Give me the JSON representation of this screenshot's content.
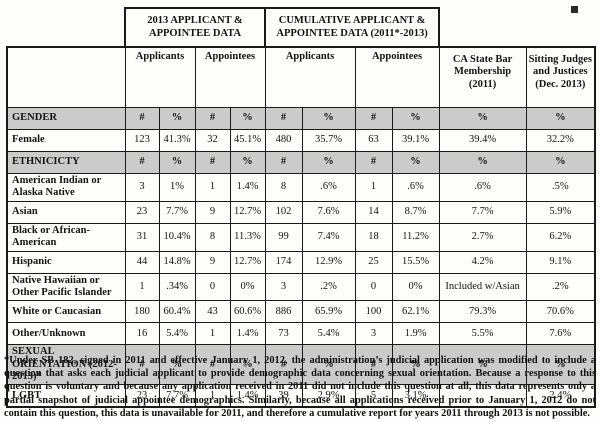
{
  "colors": {
    "section_row_bg": "#cbcbcb",
    "border": "#1a1a1a",
    "page_bg": "#fdfdfc"
  },
  "table": {
    "header": {
      "group_2013": "2013 APPLICANT & APPOINTEE DATA",
      "group_cumulative": "CUMULATIVE APPLICANT & APPOINTEE DATA (2011*-2013)",
      "sub_applicants_2013": "Applicants",
      "sub_appointees_2013": "Appointees",
      "sub_applicants_cum": "Applicants",
      "sub_appointees_cum": "Appointees",
      "col_ca_state_bar": "CA State Bar Membership (2011)",
      "col_sitting_judges": "Sitting Judges and Justices (Dec. 2013)"
    },
    "rows": [
      {
        "type": "section",
        "label": "GENDER",
        "cells": [
          "#",
          "%",
          "#",
          "%",
          "#",
          "%",
          "#",
          "%",
          "%",
          "%"
        ]
      },
      {
        "type": "data",
        "label": "Female",
        "cells": [
          "123",
          "41.3%",
          "32",
          "45.1%",
          "480",
          "35.7%",
          "63",
          "39.1%",
          "39.4%",
          "32.2%"
        ]
      },
      {
        "type": "section",
        "label": "ETHNICICTY",
        "cells": [
          "#",
          "%",
          "#",
          "%",
          "#",
          "%",
          "#",
          "%",
          "%",
          "%"
        ]
      },
      {
        "type": "data",
        "label": "American Indian or Alaska Native",
        "cells": [
          "3",
          "1%",
          "1",
          "1.4%",
          "8",
          ".6%",
          "1",
          ".6%",
          ".6%",
          ".5%"
        ]
      },
      {
        "type": "data",
        "label": "Asian",
        "cells": [
          "23",
          "7.7%",
          "9",
          "12.7%",
          "102",
          "7.6%",
          "14",
          "8.7%",
          "7.7%",
          "5.9%"
        ]
      },
      {
        "type": "data",
        "label": "Black or African-American",
        "cells": [
          "31",
          "10.4%",
          "8",
          "11.3%",
          "99",
          "7.4%",
          "18",
          "11.2%",
          "2.7%",
          "6.2%"
        ]
      },
      {
        "type": "data",
        "label": "Hispanic",
        "cells": [
          "44",
          "14.8%",
          "9",
          "12.7%",
          "174",
          "12.9%",
          "25",
          "15.5%",
          "4.2%",
          "9.1%"
        ]
      },
      {
        "type": "data",
        "label": "Native Hawaiian or Other Pacific Islander",
        "cells": [
          "1",
          ".34%",
          "0",
          "0%",
          "3",
          ".2%",
          "0",
          "0%",
          "Included w/Asian",
          ".2%"
        ]
      },
      {
        "type": "data",
        "label": "White or Caucasian",
        "cells": [
          "180",
          "60.4%",
          "43",
          "60.6%",
          "886",
          "65.9%",
          "100",
          "62.1%",
          "79.3%",
          "70.6%"
        ]
      },
      {
        "type": "data",
        "label": "Other/Unknown",
        "cells": [
          "16",
          "5.4%",
          "1",
          "1.4%",
          "73",
          "5.4%",
          "3",
          "1.9%",
          "5.5%",
          "7.6%"
        ]
      },
      {
        "type": "section",
        "label": "SEXUAL ORIENTATION (2012-2013)*",
        "cells": [
          "#",
          "%",
          "#",
          "%",
          "#",
          "%",
          "#",
          "%",
          "%",
          "%"
        ]
      },
      {
        "type": "data",
        "label": "LGBT",
        "cells": [
          "23",
          "7.7%",
          "1",
          "1.4%",
          "39",
          "2.9%",
          "5",
          "3.1%",
          "",
          "2.4%"
        ]
      }
    ]
  },
  "footnote": "*Under SB 182, signed in 2011 and effective January 1, 2012, the administration’s judicial application was modified to include a question that asks each judicial applicant to provide demographic data concerning sexual orientation. Because a response to this question is voluntary and because any application received in 2011 did not include this question at all, this data represents only a partial snapshot of judicial appointee demographics. Similarly, because all applications received prior to January 1, 2012 do not contain this question, this data is unavailable for 2011, and therefore a cumulative report for years 2011 through 2013 is not possible."
}
